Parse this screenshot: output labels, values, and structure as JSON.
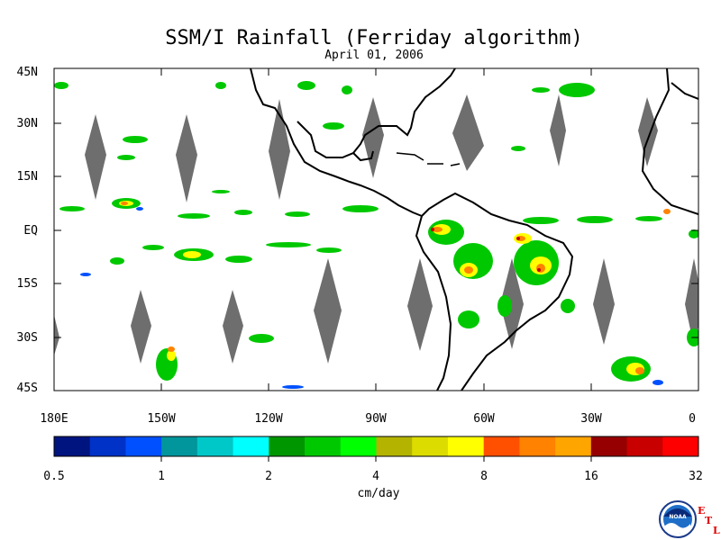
{
  "title": "SSM/I Rainfall (Ferriday algorithm)",
  "date": "April 01, 2006",
  "latitude_labels": [
    "45N",
    "30N",
    "15N",
    "EQ",
    "15S",
    "30S",
    "45S"
  ],
  "longitude_labels": [
    "180E",
    "150W",
    "120W",
    "90W",
    "60W",
    "30W",
    "0"
  ],
  "colorbar": {
    "tick_labels": [
      "0.5",
      "1",
      "2",
      "4",
      "8",
      "16",
      "32"
    ],
    "units": "cm/day",
    "colors": [
      "#001480",
      "#0032c8",
      "#0050ff",
      "#00969b",
      "#00c8c8",
      "#00ffff",
      "#009600",
      "#00c800",
      "#00ff00",
      "#b4b400",
      "#dcdc00",
      "#ffff00",
      "#ff5000",
      "#ff8200",
      "#ffa500",
      "#960000",
      "#c80000",
      "#ff0000"
    ]
  },
  "logo": {
    "noaa_text": "NOAA",
    "etl_letters": [
      "E",
      "T",
      "L"
    ]
  }
}
